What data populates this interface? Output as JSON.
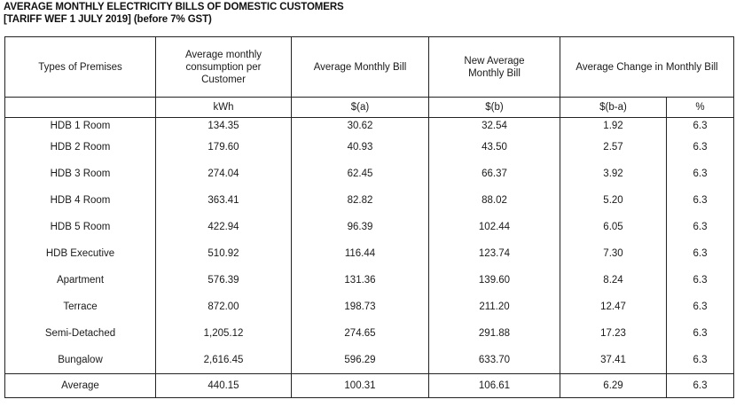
{
  "title_line1": "AVERAGE MONTHLY ELECTRICITY BILLS OF DOMESTIC CUSTOMERS",
  "title_line2": "[TARIFF WEF 1 JULY 2019] (before 7% GST)",
  "headers": {
    "premises": "Types of Premises",
    "consumption": "Average monthly consumption per Customer",
    "avg_bill": "Average Monthly Bill",
    "new_bill": "New Average Monthly Bill",
    "change": "Average Change in Monthly Bill"
  },
  "units": {
    "consumption": "kWh",
    "avg_bill": "$(a)",
    "new_bill": "$(b)",
    "change_dollar": "$(b-a)",
    "change_pct": "%"
  },
  "rows": [
    {
      "type": "HDB 1 Room",
      "kwh": "134.35",
      "a": "30.62",
      "b": "32.54",
      "diff": "1.92",
      "pct": "6.3"
    },
    {
      "type": "HDB 2 Room",
      "kwh": "179.60",
      "a": "40.93",
      "b": "43.50",
      "diff": "2.57",
      "pct": "6.3"
    },
    {
      "type": "HDB 3 Room",
      "kwh": "274.04",
      "a": "62.45",
      "b": "66.37",
      "diff": "3.92",
      "pct": "6.3"
    },
    {
      "type": "HDB 4 Room",
      "kwh": "363.41",
      "a": "82.82",
      "b": "88.02",
      "diff": "5.20",
      "pct": "6.3"
    },
    {
      "type": "HDB 5 Room",
      "kwh": "422.94",
      "a": "96.39",
      "b": "102.44",
      "diff": "6.05",
      "pct": "6.3"
    },
    {
      "type": "HDB Executive",
      "kwh": "510.92",
      "a": "116.44",
      "b": "123.74",
      "diff": "7.30",
      "pct": "6.3"
    },
    {
      "type": "Apartment",
      "kwh": "576.39",
      "a": "131.36",
      "b": "139.60",
      "diff": "8.24",
      "pct": "6.3"
    },
    {
      "type": "Terrace",
      "kwh": "872.00",
      "a": "198.73",
      "b": "211.20",
      "diff": "12.47",
      "pct": "6.3"
    },
    {
      "type": "Semi-Detached",
      "kwh": "1,205.12",
      "a": "274.65",
      "b": "291.88",
      "diff": "17.23",
      "pct": "6.3"
    },
    {
      "type": "Bungalow",
      "kwh": "2,616.45",
      "a": "596.29",
      "b": "633.70",
      "diff": "37.41",
      "pct": "6.3"
    }
  ],
  "average": {
    "type": "Average",
    "kwh": "440.15",
    "a": "100.31",
    "b": "106.61",
    "diff": "6.29",
    "pct": "6.3"
  }
}
